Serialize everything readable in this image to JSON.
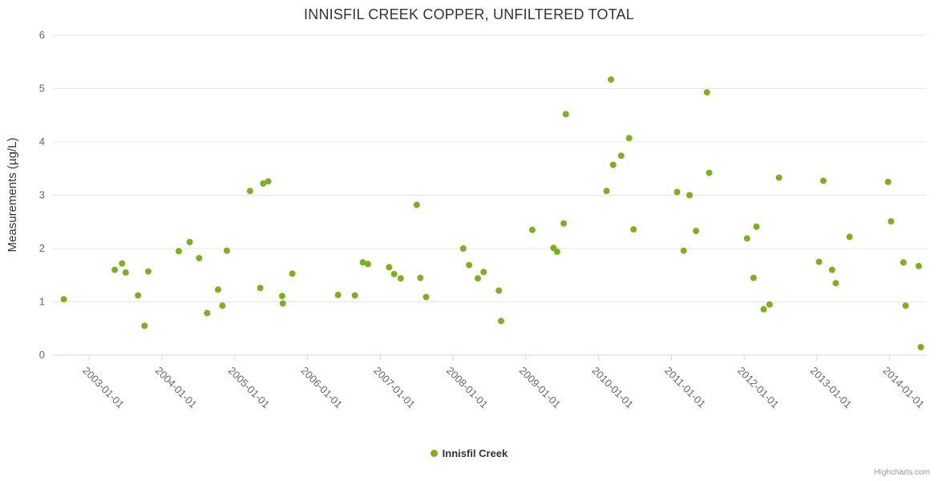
{
  "credits": "Highcharts.com",
  "chart_data": {
    "type": "scatter",
    "title": "INNISFIL CREEK COPPER, UNFILTERED TOTAL",
    "xlabel": "",
    "ylabel": "Measurements (µg/L)",
    "xlim": [
      2002.5,
      2014.5
    ],
    "ylim": [
      0,
      6
    ],
    "grid": true,
    "legend_position": "bottom-center",
    "yticks": [
      0,
      1,
      2,
      3,
      4,
      5,
      6
    ],
    "xticks": [
      2003,
      2004,
      2005,
      2006,
      2007,
      2008,
      2009,
      2010,
      2011,
      2012,
      2013,
      2014
    ],
    "xtick_labels": [
      "2003-01-01",
      "2004-01-01",
      "2005-01-01",
      "2006-01-01",
      "2007-01-01",
      "2008-01-01",
      "2009-01-01",
      "2010-01-01",
      "2011-01-01",
      "2012-01-01",
      "2013-01-01",
      "2014-01-01"
    ],
    "colors": {
      "marker": "#7cb219",
      "gridline": "#e6e6e6",
      "axis_line": "#ccd6eb",
      "tick_label": "#666666",
      "title": "#333333"
    },
    "series": [
      {
        "name": "Innisfil Creek",
        "color": "#7cb219",
        "points": [
          [
            2002.65,
            1.05
          ],
          [
            2003.35,
            1.6
          ],
          [
            2003.45,
            1.72
          ],
          [
            2003.5,
            1.55
          ],
          [
            2003.67,
            1.12
          ],
          [
            2003.76,
            0.55
          ],
          [
            2003.81,
            1.57
          ],
          [
            2004.23,
            1.95
          ],
          [
            2004.38,
            2.12
          ],
          [
            2004.51,
            1.82
          ],
          [
            2004.62,
            0.79
          ],
          [
            2004.77,
            1.23
          ],
          [
            2004.83,
            0.93
          ],
          [
            2004.89,
            1.96
          ],
          [
            2005.21,
            3.08
          ],
          [
            2005.35,
            1.26
          ],
          [
            2005.39,
            3.22
          ],
          [
            2005.46,
            3.26
          ],
          [
            2005.65,
            1.11
          ],
          [
            2005.66,
            0.97
          ],
          [
            2005.79,
            1.53
          ],
          [
            2006.42,
            1.13
          ],
          [
            2006.65,
            1.12
          ],
          [
            2006.76,
            1.74
          ],
          [
            2006.83,
            1.71
          ],
          [
            2007.12,
            1.65
          ],
          [
            2007.19,
            1.52
          ],
          [
            2007.28,
            1.44
          ],
          [
            2007.5,
            2.82
          ],
          [
            2007.55,
            1.45
          ],
          [
            2007.63,
            1.09
          ],
          [
            2008.14,
            2.0
          ],
          [
            2008.22,
            1.69
          ],
          [
            2008.34,
            1.44
          ],
          [
            2008.42,
            1.56
          ],
          [
            2008.63,
            1.21
          ],
          [
            2008.66,
            0.64
          ],
          [
            2009.09,
            2.35
          ],
          [
            2009.38,
            2.01
          ],
          [
            2009.43,
            1.94
          ],
          [
            2009.52,
            2.47
          ],
          [
            2009.55,
            4.52
          ],
          [
            2010.11,
            3.08
          ],
          [
            2010.17,
            5.17
          ],
          [
            2010.2,
            3.57
          ],
          [
            2010.31,
            3.74
          ],
          [
            2010.42,
            4.07
          ],
          [
            2010.48,
            2.36
          ],
          [
            2011.08,
            3.06
          ],
          [
            2011.17,
            1.96
          ],
          [
            2011.25,
            3.0
          ],
          [
            2011.34,
            2.33
          ],
          [
            2011.49,
            4.93
          ],
          [
            2011.52,
            3.42
          ],
          [
            2012.04,
            2.19
          ],
          [
            2012.13,
            1.45
          ],
          [
            2012.17,
            2.41
          ],
          [
            2012.27,
            0.86
          ],
          [
            2012.35,
            0.95
          ],
          [
            2012.48,
            3.33
          ],
          [
            2013.03,
            1.75
          ],
          [
            2013.09,
            3.27
          ],
          [
            2013.21,
            1.6
          ],
          [
            2013.26,
            1.35
          ],
          [
            2013.45,
            2.22
          ],
          [
            2013.98,
            3.25
          ],
          [
            2014.02,
            2.51
          ],
          [
            2014.19,
            1.74
          ],
          [
            2014.22,
            0.93
          ],
          [
            2014.4,
            1.67
          ],
          [
            2014.43,
            0.15
          ]
        ]
      }
    ]
  }
}
